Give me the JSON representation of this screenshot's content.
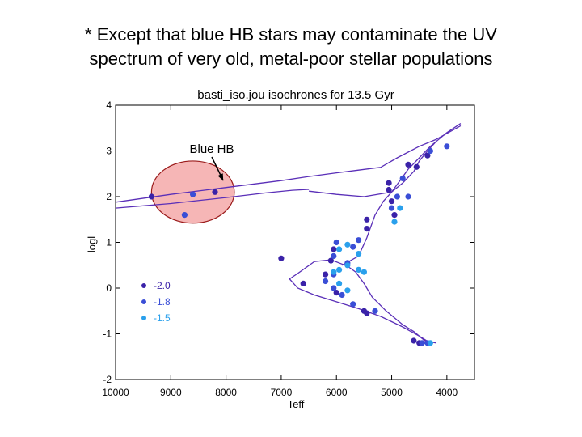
{
  "slide": {
    "heading_line1": "* Except that blue HB stars may contaminate the UV",
    "heading_line2": "spectrum of very old, metal-poor stellar populations"
  },
  "colors": {
    "iso": "#5a2fb8",
    "m20": "#3a22a8",
    "m18": "#3a4ed6",
    "m15": "#2aa0ec",
    "ellipse_fill": "#f6b6b6",
    "ellipse_stroke": "#9a1a1a"
  },
  "chart_data": {
    "type": "scatter",
    "title": "basti_iso.jou  isochrones for 13.5 Gyr",
    "xlabel": "Teff",
    "ylabel": "logl",
    "xlim": [
      10000,
      3500
    ],
    "ylim": [
      -2,
      4
    ],
    "xticks": [
      10000,
      9000,
      8000,
      7000,
      6000,
      5000,
      4000
    ],
    "yticks": [
      4,
      3,
      2,
      1,
      0,
      -1,
      -2
    ],
    "legend": {
      "position": "bottom-left",
      "entries": [
        "-2.0",
        "-1.8",
        "-1.5"
      ]
    },
    "annotation": {
      "text": "Blue HB",
      "target": "horizontal branch",
      "x": 8050,
      "y": 2.35
    },
    "highlight": {
      "label": "Blue HB region",
      "x_center": 8600,
      "y_center": 2.1,
      "x_halfwidth": 750,
      "y_halfwidth": 0.68
    },
    "isochrones": [
      {
        "name": "giant branch / HB track",
        "x": [
          10000,
          9000,
          8000,
          7000,
          6500,
          6000,
          5600,
          5200,
          4900,
          4500,
          4200,
          3750
        ],
        "y": [
          1.88,
          2.05,
          2.2,
          2.35,
          2.44,
          2.52,
          2.58,
          2.64,
          2.85,
          3.1,
          3.25,
          3.55
        ]
      },
      {
        "name": "secondary branch",
        "x": [
          10000,
          9000,
          8000,
          7300,
          6800,
          6500
        ],
        "y": [
          1.75,
          1.85,
          1.98,
          2.08,
          2.14,
          2.16
        ]
      },
      {
        "name": "main sequence + RGB",
        "x": [
          4200,
          4400,
          4600,
          4800,
          4950,
          5100,
          5250,
          5350,
          5500,
          5650,
          5800,
          6100,
          6400,
          6700,
          6850,
          6700,
          6400,
          6000,
          5600,
          5200,
          4800,
          4500,
          4300
        ],
        "y": [
          -1.2,
          -1.15,
          -0.95,
          -0.8,
          -0.65,
          -0.5,
          -0.32,
          -0.2,
          0.1,
          0.35,
          0.48,
          0.62,
          0.58,
          0.32,
          0.2,
          0.0,
          -0.15,
          -0.3,
          -0.45,
          -0.62,
          -0.85,
          -1.05,
          -1.2
        ]
      },
      {
        "name": "subgiant and red giant branch",
        "x": [
          5900,
          5600,
          5450,
          5300,
          5150,
          5000,
          4850,
          4700,
          4500,
          4300,
          4000,
          3750
        ],
        "y": [
          0.5,
          0.7,
          1.1,
          1.6,
          1.9,
          2.1,
          2.35,
          2.6,
          2.85,
          3.1,
          3.4,
          3.6
        ]
      },
      {
        "name": "AGB branch",
        "x": [
          6500,
          6000,
          5500,
          5000,
          4800,
          4600,
          4500,
          4350,
          4200
        ],
        "y": [
          2.12,
          2.05,
          2.0,
          2.1,
          2.3,
          2.55,
          2.78,
          3.0,
          3.2
        ]
      }
    ],
    "series": [
      {
        "name": "-2.0",
        "points": [
          [
            9350,
            2.0
          ],
          [
            8200,
            2.1
          ],
          [
            7000,
            0.65
          ],
          [
            5450,
            1.5
          ],
          [
            5450,
            1.3
          ],
          [
            4700,
            2.7
          ],
          [
            4550,
            2.65
          ],
          [
            4350,
            2.9
          ],
          [
            5050,
            2.3
          ],
          [
            5050,
            2.15
          ],
          [
            5000,
            1.9
          ],
          [
            4950,
            1.6
          ],
          [
            6050,
            0.85
          ],
          [
            6100,
            0.6
          ],
          [
            6200,
            0.3
          ],
          [
            6600,
            0.1
          ],
          [
            6000,
            -0.1
          ],
          [
            5500,
            -0.5
          ],
          [
            5450,
            -0.55
          ],
          [
            4600,
            -1.15
          ],
          [
            4500,
            -1.2
          ]
        ]
      },
      {
        "name": "-1.8",
        "points": [
          [
            8600,
            2.05
          ],
          [
            8750,
            1.6
          ],
          [
            4800,
            2.4
          ],
          [
            4900,
            2.0
          ],
          [
            5000,
            1.75
          ],
          [
            4700,
            2.0
          ],
          [
            4300,
            3.0
          ],
          [
            4000,
            3.1
          ],
          [
            5600,
            1.05
          ],
          [
            5700,
            0.9
          ],
          [
            6000,
            1.0
          ],
          [
            6050,
            0.7
          ],
          [
            5800,
            0.55
          ],
          [
            6200,
            0.15
          ],
          [
            6050,
            0.3
          ],
          [
            6050,
            0.0
          ],
          [
            5900,
            -0.15
          ],
          [
            5700,
            -0.35
          ],
          [
            5300,
            -0.5
          ],
          [
            4450,
            -1.2
          ],
          [
            4350,
            -1.2
          ]
        ]
      },
      {
        "name": "-1.5",
        "points": [
          [
            4950,
            1.45
          ],
          [
            4850,
            1.75
          ],
          [
            5600,
            0.75
          ],
          [
            5800,
            0.95
          ],
          [
            5950,
            0.85
          ],
          [
            5950,
            0.4
          ],
          [
            5800,
            0.5
          ],
          [
            5600,
            0.4
          ],
          [
            5500,
            0.35
          ],
          [
            6050,
            0.35
          ],
          [
            5950,
            0.1
          ],
          [
            5800,
            -0.05
          ],
          [
            4300,
            -1.2
          ]
        ]
      }
    ]
  }
}
